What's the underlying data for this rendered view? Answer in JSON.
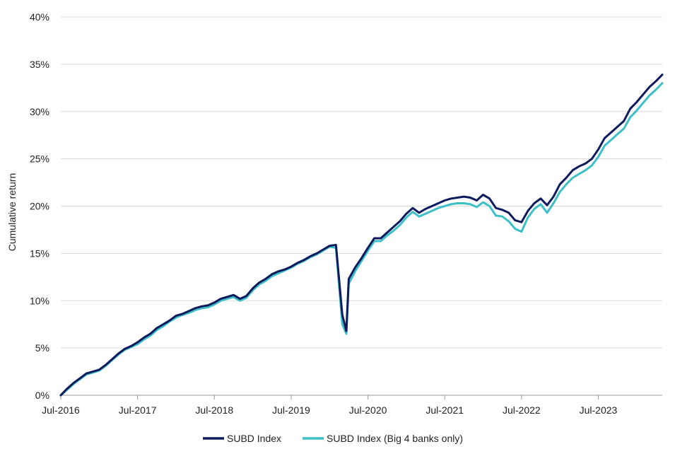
{
  "chart_data": {
    "type": "line",
    "ylabel": "Cumulative return",
    "xlabel": "",
    "ylim": [
      0,
      40
    ],
    "y_ticks": [
      "0%",
      "5%",
      "10%",
      "15%",
      "20%",
      "25%",
      "30%",
      "35%",
      "40%"
    ],
    "x_ticks": [
      "Jul-2016",
      "Jul-2017",
      "Jul-2018",
      "Jul-2019",
      "Jul-2020",
      "Jul-2021",
      "Jul-2022",
      "Jul-2023"
    ],
    "x_range": [
      "2016-07",
      "2024-05"
    ],
    "grid": "horizontal",
    "legend_position": "bottom-center",
    "series": [
      {
        "name": "SUBD Index",
        "color": "#0d1b5e",
        "points": [
          [
            "2016-07",
            0.0
          ],
          [
            "2016-08",
            0.7
          ],
          [
            "2016-09",
            1.3
          ],
          [
            "2016-10",
            1.8
          ],
          [
            "2016-11",
            2.3
          ],
          [
            "2016-12",
            2.5
          ],
          [
            "2017-01",
            2.7
          ],
          [
            "2017-02",
            3.2
          ],
          [
            "2017-03",
            3.8
          ],
          [
            "2017-04",
            4.4
          ],
          [
            "2017-05",
            4.9
          ],
          [
            "2017-06",
            5.2
          ],
          [
            "2017-07",
            5.6
          ],
          [
            "2017-08",
            6.1
          ],
          [
            "2017-09",
            6.5
          ],
          [
            "2017-10",
            7.1
          ],
          [
            "2017-11",
            7.5
          ],
          [
            "2017-12",
            7.9
          ],
          [
            "2018-01",
            8.4
          ],
          [
            "2018-02",
            8.6
          ],
          [
            "2018-03",
            8.9
          ],
          [
            "2018-04",
            9.2
          ],
          [
            "2018-05",
            9.4
          ],
          [
            "2018-06",
            9.5
          ],
          [
            "2018-07",
            9.8
          ],
          [
            "2018-08",
            10.2
          ],
          [
            "2018-09",
            10.4
          ],
          [
            "2018-10",
            10.6
          ],
          [
            "2018-11",
            10.2
          ],
          [
            "2018-12",
            10.5
          ],
          [
            "2019-01",
            11.3
          ],
          [
            "2019-02",
            11.9
          ],
          [
            "2019-03",
            12.3
          ],
          [
            "2019-04",
            12.8
          ],
          [
            "2019-05",
            13.1
          ],
          [
            "2019-06",
            13.3
          ],
          [
            "2019-07",
            13.6
          ],
          [
            "2019-08",
            14.0
          ],
          [
            "2019-09",
            14.3
          ],
          [
            "2019-10",
            14.7
          ],
          [
            "2019-11",
            15.0
          ],
          [
            "2019-12",
            15.4
          ],
          [
            "2020-01",
            15.8
          ],
          [
            "2020-02",
            15.9
          ],
          [
            "2020-03",
            8.5
          ],
          [
            "2020-03-20",
            6.8
          ],
          [
            "2020-04",
            12.3
          ],
          [
            "2020-05",
            13.5
          ],
          [
            "2020-06",
            14.5
          ],
          [
            "2020-07",
            15.6
          ],
          [
            "2020-08",
            16.6
          ],
          [
            "2020-09",
            16.6
          ],
          [
            "2020-10",
            17.2
          ],
          [
            "2020-11",
            17.8
          ],
          [
            "2020-12",
            18.4
          ],
          [
            "2021-01",
            19.2
          ],
          [
            "2021-02",
            19.8
          ],
          [
            "2021-03",
            19.3
          ],
          [
            "2021-04",
            19.7
          ],
          [
            "2021-05",
            20.0
          ],
          [
            "2021-06",
            20.3
          ],
          [
            "2021-07",
            20.6
          ],
          [
            "2021-08",
            20.8
          ],
          [
            "2021-09",
            20.9
          ],
          [
            "2021-10",
            21.0
          ],
          [
            "2021-11",
            20.9
          ],
          [
            "2021-12",
            20.6
          ],
          [
            "2022-01",
            21.2
          ],
          [
            "2022-02",
            20.8
          ],
          [
            "2022-03",
            19.8
          ],
          [
            "2022-04",
            19.6
          ],
          [
            "2022-05",
            19.3
          ],
          [
            "2022-06",
            18.5
          ],
          [
            "2022-07",
            18.3
          ],
          [
            "2022-08",
            19.5
          ],
          [
            "2022-09",
            20.3
          ],
          [
            "2022-10",
            20.8
          ],
          [
            "2022-11",
            20.1
          ],
          [
            "2022-12",
            21.0
          ],
          [
            "2023-01",
            22.3
          ],
          [
            "2023-02",
            23.0
          ],
          [
            "2023-03",
            23.8
          ],
          [
            "2023-04",
            24.2
          ],
          [
            "2023-05",
            24.5
          ],
          [
            "2023-06",
            25.0
          ],
          [
            "2023-07",
            26.0
          ],
          [
            "2023-08",
            27.2
          ],
          [
            "2023-09",
            27.8
          ],
          [
            "2023-10",
            28.4
          ],
          [
            "2023-11",
            29.0
          ],
          [
            "2023-12",
            30.3
          ],
          [
            "2024-01",
            31.0
          ],
          [
            "2024-02",
            31.8
          ],
          [
            "2024-03",
            32.6
          ],
          [
            "2024-04",
            33.2
          ],
          [
            "2024-05",
            33.9
          ]
        ]
      },
      {
        "name": "SUBD Index (Big 4 banks only)",
        "color": "#3cbfc7",
        "points": [
          [
            "2016-07",
            0.0
          ],
          [
            "2016-08",
            0.6
          ],
          [
            "2016-09",
            1.2
          ],
          [
            "2016-10",
            1.7
          ],
          [
            "2016-11",
            2.2
          ],
          [
            "2016-12",
            2.4
          ],
          [
            "2017-01",
            2.6
          ],
          [
            "2017-02",
            3.1
          ],
          [
            "2017-03",
            3.7
          ],
          [
            "2017-04",
            4.3
          ],
          [
            "2017-05",
            4.8
          ],
          [
            "2017-06",
            5.1
          ],
          [
            "2017-07",
            5.4
          ],
          [
            "2017-08",
            5.9
          ],
          [
            "2017-09",
            6.3
          ],
          [
            "2017-10",
            6.9
          ],
          [
            "2017-11",
            7.3
          ],
          [
            "2017-12",
            7.8
          ],
          [
            "2018-01",
            8.2
          ],
          [
            "2018-02",
            8.5
          ],
          [
            "2018-03",
            8.7
          ],
          [
            "2018-04",
            9.0
          ],
          [
            "2018-05",
            9.2
          ],
          [
            "2018-06",
            9.3
          ],
          [
            "2018-07",
            9.6
          ],
          [
            "2018-08",
            10.0
          ],
          [
            "2018-09",
            10.2
          ],
          [
            "2018-10",
            10.4
          ],
          [
            "2018-11",
            10.0
          ],
          [
            "2018-12",
            10.3
          ],
          [
            "2019-01",
            11.1
          ],
          [
            "2019-02",
            11.7
          ],
          [
            "2019-03",
            12.1
          ],
          [
            "2019-04",
            12.6
          ],
          [
            "2019-05",
            12.9
          ],
          [
            "2019-06",
            13.2
          ],
          [
            "2019-07",
            13.5
          ],
          [
            "2019-08",
            13.9
          ],
          [
            "2019-09",
            14.2
          ],
          [
            "2019-10",
            14.6
          ],
          [
            "2019-11",
            14.9
          ],
          [
            "2019-12",
            15.3
          ],
          [
            "2020-01",
            15.7
          ],
          [
            "2020-02",
            15.6
          ],
          [
            "2020-03",
            7.5
          ],
          [
            "2020-03-20",
            6.5
          ],
          [
            "2020-04",
            11.8
          ],
          [
            "2020-05",
            13.1
          ],
          [
            "2020-06",
            14.2
          ],
          [
            "2020-07",
            15.3
          ],
          [
            "2020-08",
            16.3
          ],
          [
            "2020-09",
            16.3
          ],
          [
            "2020-10",
            16.9
          ],
          [
            "2020-11",
            17.4
          ],
          [
            "2020-12",
            18.0
          ],
          [
            "2021-01",
            18.8
          ],
          [
            "2021-02",
            19.4
          ],
          [
            "2021-03",
            18.9
          ],
          [
            "2021-04",
            19.2
          ],
          [
            "2021-05",
            19.5
          ],
          [
            "2021-06",
            19.8
          ],
          [
            "2021-07",
            20.0
          ],
          [
            "2021-08",
            20.2
          ],
          [
            "2021-09",
            20.3
          ],
          [
            "2021-10",
            20.3
          ],
          [
            "2021-11",
            20.2
          ],
          [
            "2021-12",
            19.9
          ],
          [
            "2022-01",
            20.4
          ],
          [
            "2022-02",
            20.0
          ],
          [
            "2022-03",
            19.0
          ],
          [
            "2022-04",
            18.9
          ],
          [
            "2022-05",
            18.4
          ],
          [
            "2022-06",
            17.6
          ],
          [
            "2022-07",
            17.3
          ],
          [
            "2022-08",
            18.8
          ],
          [
            "2022-09",
            19.7
          ],
          [
            "2022-10",
            20.2
          ],
          [
            "2022-11",
            19.3
          ],
          [
            "2022-12",
            20.3
          ],
          [
            "2023-01",
            21.5
          ],
          [
            "2023-02",
            22.3
          ],
          [
            "2023-03",
            23.0
          ],
          [
            "2023-04",
            23.4
          ],
          [
            "2023-05",
            23.8
          ],
          [
            "2023-06",
            24.3
          ],
          [
            "2023-07",
            25.2
          ],
          [
            "2023-08",
            26.4
          ],
          [
            "2023-09",
            27.0
          ],
          [
            "2023-10",
            27.6
          ],
          [
            "2023-11",
            28.2
          ],
          [
            "2023-12",
            29.4
          ],
          [
            "2024-01",
            30.1
          ],
          [
            "2024-02",
            30.9
          ],
          [
            "2024-03",
            31.7
          ],
          [
            "2024-04",
            32.3
          ],
          [
            "2024-05",
            33.0
          ]
        ]
      }
    ]
  }
}
